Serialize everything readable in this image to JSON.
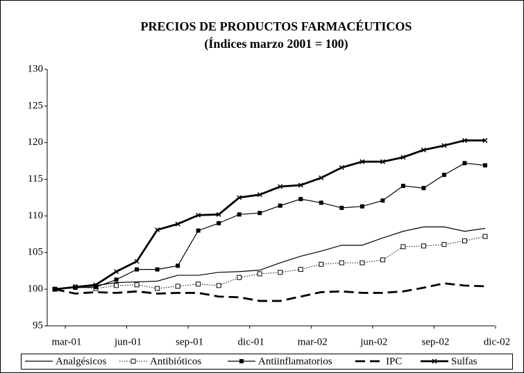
{
  "chart_data": {
    "type": "line",
    "title": "PRECIOS DE PRODUCTOS FARMACÉUTICOS",
    "subtitle": "(Índices marzo 2001 = 100)",
    "categories": [
      "mar-01",
      null,
      null,
      "jun-01",
      null,
      null,
      "sep-01",
      null,
      null,
      "dic-01",
      null,
      null,
      "mar-02",
      null,
      null,
      "jun-02",
      null,
      null,
      "sep-02",
      null,
      null,
      "dic-02"
    ],
    "series": [
      {
        "name": "Analgésicos",
        "color": "#000000",
        "values": [
          100,
          100.2,
          100.5,
          100.9,
          101.0,
          101.1,
          101.9,
          101.9,
          102.3,
          102.4,
          102.6,
          103.6,
          104.5,
          105.2,
          106.0,
          106.0,
          107.0,
          107.9,
          108.5,
          108.5,
          107.9,
          108.3
        ]
      },
      {
        "name": "Antibióticos",
        "color": "#000000",
        "values": [
          100,
          100.3,
          100.1,
          100.5,
          100.6,
          100.1,
          100.4,
          100.7,
          100.5,
          101.6,
          102.1,
          102.3,
          102.7,
          103.4,
          103.6,
          103.6,
          104.0,
          105.8,
          105.9,
          106.1,
          106.6,
          107.2
        ]
      },
      {
        "name": "Antiinflamatorios",
        "color": "#000000",
        "values": [
          100,
          100.2,
          100.3,
          101.3,
          102.7,
          102.7,
          103.2,
          108.0,
          109.0,
          110.2,
          110.4,
          111.4,
          112.3,
          111.8,
          111.1,
          111.3,
          112.1,
          114.1,
          113.8,
          115.6,
          117.2,
          116.9
        ]
      },
      {
        "name": "IPC",
        "color": "#000000",
        "values": [
          100,
          99.4,
          99.6,
          99.5,
          99.7,
          99.4,
          99.5,
          99.5,
          99.0,
          98.9,
          98.4,
          98.4,
          99.0,
          99.6,
          99.7,
          99.5,
          99.5,
          99.7,
          100.2,
          100.8,
          100.5,
          100.4
        ]
      },
      {
        "name": "Sulfas",
        "color": "#000000",
        "values": [
          100,
          100.3,
          100.6,
          102.4,
          103.8,
          108.1,
          108.9,
          110.1,
          110.2,
          112.5,
          112.9,
          114.0,
          114.2,
          115.2,
          116.6,
          117.4,
          117.4,
          118.0,
          119.0,
          119.6,
          120.3,
          120.3
        ]
      }
    ],
    "ylim": [
      95,
      130
    ],
    "yticks": [
      95,
      100,
      105,
      110,
      115,
      120,
      125,
      130
    ],
    "grid": false,
    "legend": "bottom"
  }
}
